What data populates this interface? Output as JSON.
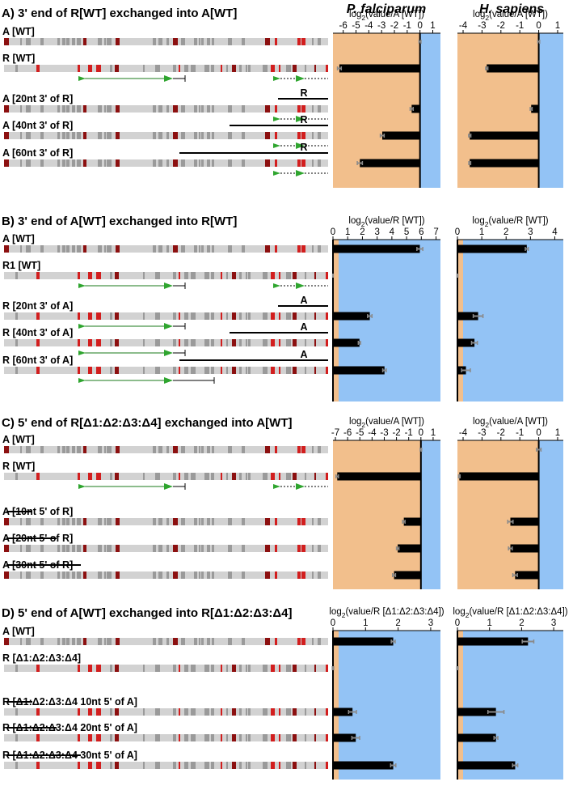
{
  "column_titles": [
    "P. falciparum",
    "H. sapiens"
  ],
  "colors": {
    "negative_region": "#F2BF8C",
    "positive_region": "#93C3F5",
    "bar": "#000000",
    "error": "#8A8A8A",
    "seq_light": "#D2D2D2",
    "seq_mid": "#9A9A9A",
    "seq_red": "#D21E1E",
    "seq_darkred": "#8C1010",
    "primer_green": "#2FA52F"
  },
  "panels": [
    {
      "id": "A",
      "title": "A)  3' end of R[WT] exchanged into A[WT]",
      "constructs": [
        {
          "label": "A [WT]",
          "seq": "A",
          "insert": null,
          "primers": null
        },
        {
          "label": "R [WT]",
          "seq": "R",
          "insert": null,
          "primers": "full"
        },
        {
          "label": "A [20nt 3' of R]",
          "seq": "A",
          "insert": {
            "side": "3",
            "nt": 20,
            "tag": "R"
          },
          "primers": "right"
        },
        {
          "label": "A [40nt 3' of R]",
          "seq": "A",
          "insert": {
            "side": "3",
            "nt": 40,
            "tag": "R"
          },
          "primers": "right"
        },
        {
          "label": "A [60nt 3' of R]",
          "seq": "A",
          "insert": {
            "side": "3",
            "nt": 60,
            "tag": "R"
          },
          "primers": "right"
        }
      ]
    },
    {
      "id": "B",
      "title": "B)  3' end of A[WT] exchanged into R[WT]",
      "constructs": [
        {
          "label": "A [WT]",
          "seq": "A",
          "insert": null,
          "primers": null
        },
        {
          "label": "R1 [WT]",
          "seq": "R",
          "insert": null,
          "primers": "full"
        },
        {
          "label": "R [20nt 3' of A]",
          "seq": "R",
          "insert": {
            "side": "3",
            "nt": 20,
            "tag": "A"
          },
          "primers": "left"
        },
        {
          "label": "R [40nt 3' of A]",
          "seq": "R",
          "insert": {
            "side": "3",
            "nt": 40,
            "tag": "A"
          },
          "primers": "left"
        },
        {
          "label": "R [60nt 3' of A]",
          "seq": "R",
          "insert": {
            "side": "3",
            "nt": 60,
            "tag": "A"
          },
          "primers": "left_long"
        }
      ]
    },
    {
      "id": "C",
      "title": "C)  5' end of R[Δ1:Δ2:Δ3:Δ4] exchanged into A[WT]",
      "constructs": [
        {
          "label": "A [WT]",
          "seq": "A",
          "insert": null,
          "primers": null
        },
        {
          "label": "R [WT]",
          "seq": "R",
          "insert": null,
          "primers": "full"
        },
        {
          "label": "A [10nt 5' of R]",
          "seq": "A",
          "insert": {
            "side": "5",
            "nt": 10,
            "tag": ""
          },
          "primers": null
        },
        {
          "label": "A [20nt 5' of R]",
          "seq": "A",
          "insert": {
            "side": "5",
            "nt": 20,
            "tag": ""
          },
          "primers": null
        },
        {
          "label": "A [30nt 5' of R]",
          "seq": "A",
          "insert": {
            "side": "5",
            "nt": 30,
            "tag": ""
          },
          "primers": null
        }
      ]
    },
    {
      "id": "D",
      "title": "D)  5' end of A[WT] exchanged into R[Δ1:Δ2:Δ3:Δ4]",
      "constructs": [
        {
          "label": "A [WT]",
          "seq": "A",
          "insert": null,
          "primers": null
        },
        {
          "label": "R [Δ1:Δ2:Δ3:Δ4]",
          "seq": "R",
          "insert": null,
          "primers": null
        },
        {
          "label": "R [Δ1:Δ2:Δ3:Δ4 10nt 5' of A]",
          "seq": "R",
          "insert": {
            "side": "5",
            "nt": 10,
            "tag": ""
          },
          "primers": null
        },
        {
          "label": "R [Δ1:Δ2:Δ3:Δ4 20nt 5' of A]",
          "seq": "R",
          "insert": {
            "side": "5",
            "nt": 20,
            "tag": ""
          },
          "primers": null
        },
        {
          "label": "R [Δ1:Δ2:Δ3:Δ4 30nt 5' of A]",
          "seq": "R",
          "insert": {
            "side": "5",
            "nt": 30,
            "tag": ""
          },
          "primers": null
        }
      ]
    }
  ],
  "chart_data": [
    {
      "type": "bar",
      "panel": "A",
      "organism": "P. falciparum",
      "xlabel": "log2(value/A [WT])",
      "xlim": [
        -6.8,
        1.6
      ],
      "ticks": [
        -6,
        -5,
        -4,
        -3,
        -2,
        -1,
        0,
        1
      ],
      "categories": [
        "A [WT]",
        "R [WT]",
        "A [20nt 3' of R]",
        "A [40nt 3' of R]",
        "A [60nt 3' of R]"
      ],
      "values": [
        0,
        -6.3,
        -0.65,
        -2.95,
        -4.7
      ],
      "errors": [
        0.08,
        0.15,
        0.12,
        0.15,
        0.2
      ]
    },
    {
      "type": "bar",
      "panel": "A",
      "organism": "H. sapiens",
      "xlabel": "log2(value/A [WT])",
      "xlim": [
        -4.3,
        1.3
      ],
      "ticks": [
        -4,
        -3,
        -2,
        -1,
        0,
        1
      ],
      "categories": [
        "A [WT]",
        "R [WT]",
        "A [20nt 3' of R]",
        "A [40nt 3' of R]",
        "A [60nt 3' of R]"
      ],
      "values": [
        0,
        -2.75,
        -0.4,
        -3.65,
        -3.65
      ],
      "errors": [
        0.05,
        0.06,
        0.05,
        0.06,
        0.05
      ]
    },
    {
      "type": "bar",
      "panel": "B",
      "organism": "P. falciparum",
      "xlabel": "log2(value/R [WT])",
      "xlim": [
        0,
        7.3
      ],
      "ticks": [
        0,
        1,
        2,
        3,
        4,
        5,
        6,
        7
      ],
      "categories": [
        "A [WT]",
        "R1 [WT]",
        "R [20nt 3' of A]",
        "R [40nt 3' of A]",
        "R [60nt 3' of A]"
      ],
      "values": [
        5.9,
        0,
        2.5,
        1.8,
        3.5
      ],
      "errors": [
        0.2,
        0.02,
        0.15,
        0.08,
        0.12
      ]
    },
    {
      "type": "bar",
      "panel": "B",
      "organism": "H. sapiens",
      "xlabel": "log2(value/R [WT])",
      "xlim": [
        0,
        4.35
      ],
      "ticks": [
        0,
        1,
        2,
        3,
        4
      ],
      "categories": [
        "A [WT]",
        "R1 [WT]",
        "R [20nt 3' of A]",
        "R [40nt 3' of A]",
        "R [60nt 3' of A]"
      ],
      "values": [
        2.85,
        0,
        0.85,
        0.7,
        0.35
      ],
      "errors": [
        0.06,
        0.02,
        0.2,
        0.12,
        0.18
      ]
    },
    {
      "type": "bar",
      "panel": "C",
      "organism": "P. falciparum",
      "xlabel": "log2(value/A [WT])",
      "xlim": [
        -7.2,
        1.6
      ],
      "ticks": [
        -7,
        -6,
        -5,
        -4,
        -3,
        -2,
        -1,
        0,
        1
      ],
      "categories": [
        "A [WT]",
        "R [WT]",
        "A [10nt 5' of R]",
        "A [20nt 5' of R]",
        "A [30nt 5' of R]"
      ],
      "values": [
        0,
        -6.85,
        -1.4,
        -1.9,
        -2.2
      ],
      "errors": [
        0.06,
        0.1,
        0.1,
        0.1,
        0.12
      ]
    },
    {
      "type": "bar",
      "panel": "C",
      "organism": "H. sapiens",
      "xlabel": "log2(value/A [WT])",
      "xlim": [
        -4.3,
        1.3
      ],
      "ticks": [
        -4,
        -3,
        -2,
        -1,
        0,
        1
      ],
      "categories": [
        "A [WT]",
        "R [WT]",
        "A [10nt 5' of R]",
        "A [20nt 5' of R]",
        "A [30nt 5' of R]"
      ],
      "values": [
        0,
        -4.2,
        -1.5,
        -1.5,
        -1.25
      ],
      "errors": [
        0.12,
        0.04,
        0.14,
        0.1,
        0.12
      ]
    },
    {
      "type": "bar",
      "panel": "D",
      "organism": "P. falciparum",
      "xlabel": "log2(value/R [Δ1:Δ2:Δ3:Δ4])",
      "xlim": [
        0,
        3.3
      ],
      "ticks": [
        0,
        1,
        2,
        3
      ],
      "categories": [
        "A [WT]",
        "R [Δ1:Δ2:Δ3:Δ4]",
        "R [Δ1:Δ2:Δ3:Δ4 10nt 5' of A]",
        "R [Δ1:Δ2:Δ3:Δ4 20nt 5' of A]",
        "R [Δ1:Δ2:Δ3:Δ4 30nt 5' of A]"
      ],
      "values": [
        1.85,
        0,
        0.6,
        0.7,
        1.85
      ],
      "errors": [
        0.06,
        0.02,
        0.12,
        0.12,
        0.08
      ]
    },
    {
      "type": "bar",
      "panel": "D",
      "organism": "H. sapiens",
      "xlabel": "log2(value/R [Δ1:Δ2:Δ3:Δ4])",
      "xlim": [
        0,
        3.3
      ],
      "ticks": [
        0,
        1,
        2,
        3
      ],
      "categories": [
        "A [WT]",
        "R [Δ1:Δ2:Δ3:Δ4]",
        "R [Δ1:Δ2:Δ3:Δ4 10nt 5' of A]",
        "R [Δ1:Δ2:Δ3:Δ4 20nt 5' of A]",
        "R [Δ1:Δ2:Δ3:Δ4 30nt 5' of A]"
      ],
      "values": [
        2.2,
        0,
        1.2,
        1.2,
        1.8
      ],
      "errors": [
        0.18,
        0.02,
        0.25,
        0.06,
        0.08
      ]
    }
  ]
}
